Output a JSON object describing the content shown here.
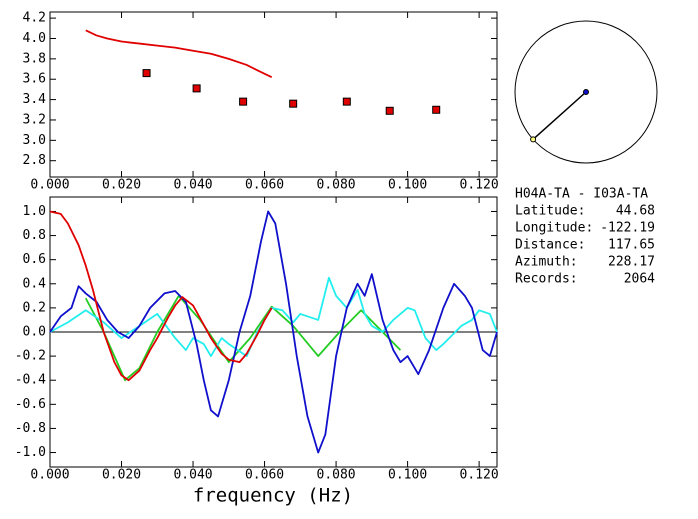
{
  "chart_data": [
    {
      "type": "line",
      "xlim": [
        0,
        0.125
      ],
      "ylim": [
        2.64,
        4.26
      ],
      "xticks": [
        {
          "value": 0,
          "label": "0.000"
        },
        {
          "value": 0.02,
          "label": "0.020"
        },
        {
          "value": 0.04,
          "label": "0.040"
        },
        {
          "value": 0.06,
          "label": "0.060"
        },
        {
          "value": 0.08,
          "label": "0.080"
        },
        {
          "value": 0.1,
          "label": "0.100"
        },
        {
          "value": 0.12,
          "label": "0.120"
        }
      ],
      "yticks": [
        {
          "value": 2.8,
          "label": "2.8"
        },
        {
          "value": 3.0,
          "label": "3.0"
        },
        {
          "value": 3.2,
          "label": "3.2"
        },
        {
          "value": 3.4,
          "label": "3.4"
        },
        {
          "value": 3.6,
          "label": "3.6"
        },
        {
          "value": 3.8,
          "label": "3.8"
        },
        {
          "value": 4.0,
          "label": "4.0"
        },
        {
          "value": 4.2,
          "label": "4.2"
        }
      ],
      "series": [
        {
          "color": "#e00000",
          "x": [
            0.01,
            0.013,
            0.016,
            0.02,
            0.025,
            0.03,
            0.035,
            0.04,
            0.045,
            0.05,
            0.055,
            0.059,
            0.062
          ],
          "values": [
            4.08,
            4.03,
            4.0,
            3.97,
            3.95,
            3.93,
            3.91,
            3.88,
            3.85,
            3.8,
            3.74,
            3.67,
            3.62
          ]
        },
        {
          "color": "#e00000",
          "marker": "square",
          "x": [
            0.027,
            0.041,
            0.054,
            0.068,
            0.083,
            0.095,
            0.108
          ],
          "values": [
            3.66,
            3.51,
            3.38,
            3.36,
            3.38,
            3.29,
            3.3
          ]
        }
      ]
    },
    {
      "type": "line",
      "xlabel": "frequency (Hz)",
      "xlim": [
        0,
        0.125
      ],
      "ylim": [
        -1.12,
        1.12
      ],
      "xticks": [
        {
          "value": 0,
          "label": "0.000"
        },
        {
          "value": 0.02,
          "label": "0.020"
        },
        {
          "value": 0.04,
          "label": "0.040"
        },
        {
          "value": 0.06,
          "label": "0.060"
        },
        {
          "value": 0.08,
          "label": "0.080"
        },
        {
          "value": 0.1,
          "label": "0.100"
        },
        {
          "value": 0.12,
          "label": "0.120"
        }
      ],
      "yticks": [
        {
          "value": -1.0,
          "label": "-1.0"
        },
        {
          "value": -0.8,
          "label": "-0.8"
        },
        {
          "value": -0.6,
          "label": "-0.6"
        },
        {
          "value": -0.4,
          "label": "-0.4"
        },
        {
          "value": -0.2,
          "label": "-0.2"
        },
        {
          "value": 0.0,
          "label": "0.0"
        },
        {
          "value": 0.2,
          "label": "0.2"
        },
        {
          "value": 0.4,
          "label": "0.4"
        },
        {
          "value": 0.6,
          "label": "0.6"
        },
        {
          "value": 0.8,
          "label": "0.8"
        },
        {
          "value": 1.0,
          "label": "1.0"
        }
      ],
      "series": [
        {
          "color": "#22cc22",
          "x": [
            0.01,
            0.015,
            0.021,
            0.025,
            0.03,
            0.036,
            0.042,
            0.05,
            0.056,
            0.062,
            0.068,
            0.075,
            0.081,
            0.087,
            0.093,
            0.098
          ],
          "values": [
            0.28,
            0.0,
            -0.4,
            -0.3,
            0.0,
            0.3,
            0.1,
            -0.25,
            -0.05,
            0.21,
            0.05,
            -0.2,
            0.0,
            0.18,
            0.0,
            -0.15
          ]
        },
        {
          "color": "#22eeee",
          "x": [
            0,
            0.005,
            0.01,
            0.015,
            0.02,
            0.025,
            0.03,
            0.035,
            0.038,
            0.04,
            0.043,
            0.045,
            0.048,
            0.05,
            0.055,
            0.058,
            0.062,
            0.065,
            0.068,
            0.07,
            0.075,
            0.078,
            0.08,
            0.083,
            0.086,
            0.088,
            0.09,
            0.093,
            0.096,
            0.1,
            0.102,
            0.105,
            0.108,
            0.11,
            0.115,
            0.118,
            0.12,
            0.123,
            0.125
          ],
          "values": [
            0.0,
            0.08,
            0.18,
            0.08,
            -0.05,
            0.05,
            0.15,
            -0.05,
            -0.15,
            -0.05,
            -0.1,
            -0.2,
            -0.05,
            -0.1,
            -0.2,
            0.0,
            0.2,
            0.18,
            0.08,
            0.15,
            0.1,
            0.45,
            0.3,
            0.2,
            0.35,
            0.15,
            0.05,
            0.0,
            0.1,
            0.2,
            0.18,
            -0.05,
            -0.15,
            -0.1,
            0.05,
            0.1,
            0.18,
            0.15,
            0.0
          ]
        },
        {
          "color": "#1010cc",
          "x": [
            0,
            0.003,
            0.006,
            0.008,
            0.01,
            0.013,
            0.016,
            0.019,
            0.022,
            0.025,
            0.028,
            0.032,
            0.035,
            0.038,
            0.041,
            0.043,
            0.045,
            0.047,
            0.05,
            0.053,
            0.056,
            0.059,
            0.061,
            0.063,
            0.066,
            0.069,
            0.072,
            0.075,
            0.077,
            0.08,
            0.083,
            0.086,
            0.088,
            0.09,
            0.093,
            0.096,
            0.098,
            0.1,
            0.103,
            0.106,
            0.11,
            0.113,
            0.116,
            0.118,
            0.121,
            0.123,
            0.125
          ],
          "values": [
            0.0,
            0.13,
            0.2,
            0.38,
            0.32,
            0.25,
            0.1,
            0.0,
            -0.05,
            0.05,
            0.2,
            0.32,
            0.34,
            0.25,
            -0.1,
            -0.4,
            -0.65,
            -0.7,
            -0.4,
            0.0,
            0.3,
            0.75,
            1.0,
            0.9,
            0.4,
            -0.2,
            -0.7,
            -1.0,
            -0.85,
            -0.2,
            0.2,
            0.4,
            0.3,
            0.48,
            0.1,
            -0.15,
            -0.25,
            -0.2,
            -0.35,
            -0.15,
            0.2,
            0.4,
            0.3,
            0.2,
            -0.15,
            -0.2,
            0.0
          ]
        },
        {
          "color": "#e00000",
          "x": [
            0,
            0.003,
            0.005,
            0.008,
            0.01,
            0.012,
            0.015,
            0.018,
            0.02,
            0.022,
            0.025,
            0.028,
            0.03,
            0.033,
            0.035,
            0.037,
            0.04,
            0.043,
            0.045,
            0.048,
            0.05,
            0.053,
            0.055,
            0.058,
            0.06,
            0.062
          ],
          "values": [
            1.0,
            0.98,
            0.9,
            0.72,
            0.55,
            0.35,
            0.0,
            -0.25,
            -0.36,
            -0.4,
            -0.32,
            -0.15,
            -0.05,
            0.12,
            0.22,
            0.29,
            0.22,
            0.06,
            -0.05,
            -0.18,
            -0.23,
            -0.25,
            -0.18,
            -0.02,
            0.1,
            0.2
          ]
        }
      ]
    }
  ],
  "station_info": {
    "header": "H04A-TA - I03A-TA",
    "fields": [
      {
        "label": "Latitude:",
        "value": 44.68
      },
      {
        "label": "Longitude:",
        "value": -122.19
      },
      {
        "label": "Distance:",
        "value": 117.65
      },
      {
        "label": "Azimuth:",
        "value": 228.17
      },
      {
        "label": "Records:",
        "value": 2064
      }
    ]
  }
}
